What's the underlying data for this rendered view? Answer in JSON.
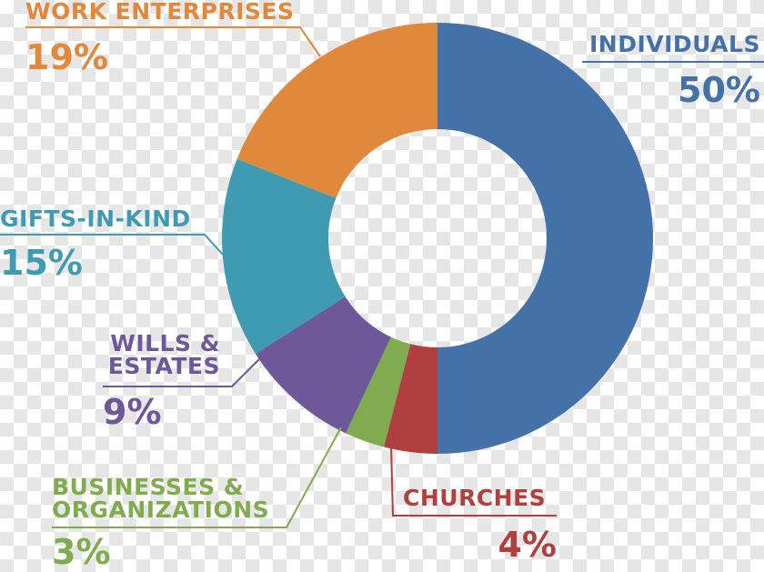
{
  "chart_data": {
    "type": "donut",
    "categories": [
      "INDIVIDUALS",
      "CHURCHES",
      "BUSINESSES & ORGANIZATIONS",
      "WILLS & ESTATES",
      "GIFTS-IN-KIND",
      "WORK ENTERPRISES"
    ],
    "values": [
      50,
      4,
      3,
      9,
      15,
      19
    ],
    "value_labels": [
      "50%",
      "4%",
      "3%",
      "9%",
      "15%",
      "19%"
    ],
    "colors": [
      "#4472a8",
      "#b0403f",
      "#80ab4f",
      "#6e5899",
      "#3f9bb1",
      "#e0893d"
    ]
  }
}
